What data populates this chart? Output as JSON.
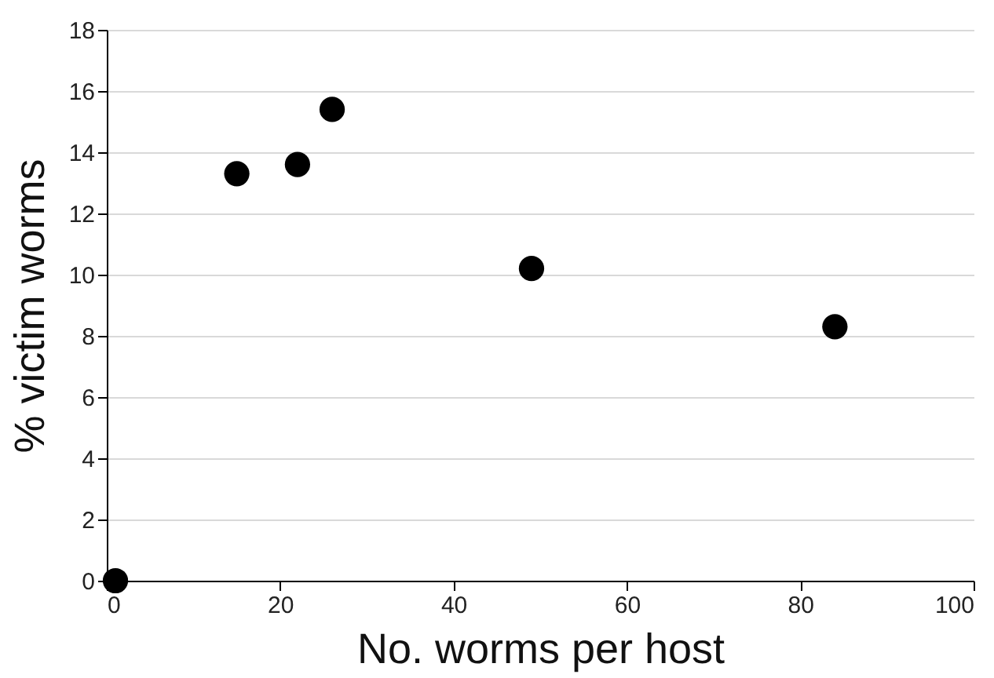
{
  "chart_data": {
    "type": "scatter",
    "xlabel": "No. worms per host",
    "ylabel": "% victim worms",
    "x": [
      1,
      15,
      22,
      26,
      49,
      84
    ],
    "series": [
      {
        "color": "#000000",
        "values": [
          0,
          13.3,
          13.6,
          15.4,
          10.2,
          8.3
        ]
      }
    ],
    "xlim": [
      0,
      100
    ],
    "xticks": [
      0,
      20,
      40,
      60,
      80,
      100
    ],
    "ylim": [
      0,
      18
    ],
    "yticks": [
      0,
      2,
      4,
      6,
      8,
      10,
      12,
      14,
      16,
      18
    ],
    "grid": "y",
    "marker": "circle"
  }
}
